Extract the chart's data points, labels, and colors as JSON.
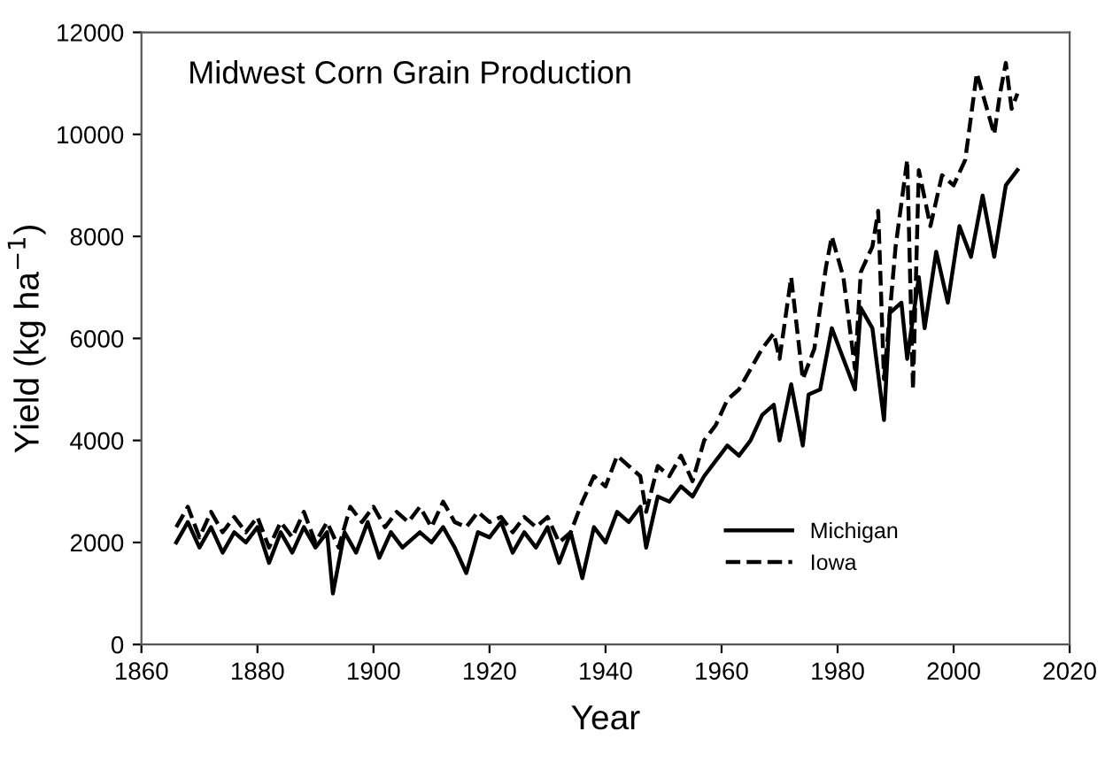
{
  "chart_data": {
    "type": "line",
    "title": "Midwest Corn Grain Production",
    "xlabel": "Year",
    "ylabel": "Yield (kg ha$^{−1}$)",
    "xlim": [
      1860,
      2020
    ],
    "xticks": [
      1860,
      1880,
      1900,
      1920,
      1940,
      1960,
      1980,
      2000,
      2020
    ],
    "ylim": [
      0,
      12000
    ],
    "yticks": [
      0,
      2000,
      4000,
      6000,
      8000,
      10000,
      12000
    ],
    "grid": false,
    "legend": "bottom right",
    "marker": "none",
    "series": [
      {
        "name": "Michigan",
        "color": "#000000",
        "line_style": "solid",
        "x": [
          1866,
          1868,
          1870,
          1872,
          1874,
          1876,
          1878,
          1880,
          1882,
          1884,
          1886,
          1888,
          1890,
          1892,
          1893,
          1895,
          1897,
          1899,
          1901,
          1903,
          1905,
          1908,
          1910,
          1912,
          1914,
          1916,
          1918,
          1920,
          1922,
          1924,
          1926,
          1928,
          1930,
          1932,
          1934,
          1936,
          1938,
          1940,
          1942,
          1944,
          1946,
          1947,
          1949,
          1951,
          1953,
          1955,
          1957,
          1959,
          1961,
          1963,
          1965,
          1967,
          1969,
          1970,
          1972,
          1974,
          1975,
          1977,
          1979,
          1981,
          1983,
          1984,
          1986,
          1988,
          1989,
          1991,
          1992,
          1994,
          1995,
          1997,
          1999,
          2001,
          2003,
          2005,
          2007,
          2009,
          2011
        ],
        "values": [
          2000,
          2400,
          1900,
          2300,
          1800,
          2200,
          2000,
          2300,
          1600,
          2200,
          1800,
          2300,
          1900,
          2200,
          1000,
          2200,
          1800,
          2400,
          1700,
          2200,
          1900,
          2200,
          2000,
          2300,
          1900,
          1400,
          2200,
          2100,
          2400,
          1800,
          2200,
          1900,
          2300,
          1600,
          2200,
          1300,
          2300,
          2000,
          2600,
          2400,
          2700,
          1900,
          2900,
          2800,
          3100,
          2900,
          3300,
          3600,
          3900,
          3700,
          4000,
          4500,
          4700,
          4000,
          5100,
          3900,
          4900,
          5000,
          6200,
          5600,
          5000,
          6600,
          6200,
          4400,
          6500,
          6700,
          5600,
          7200,
          6200,
          7700,
          6700,
          8200,
          7600,
          8800,
          7600,
          9000,
          9300
        ]
      },
      {
        "name": "Iowa",
        "color": "#000000",
        "line_style": "dashed",
        "x": [
          1866,
          1868,
          1870,
          1872,
          1874,
          1876,
          1878,
          1880,
          1882,
          1884,
          1886,
          1888,
          1890,
          1892,
          1894,
          1896,
          1898,
          1900,
          1902,
          1904,
          1906,
          1908,
          1910,
          1912,
          1914,
          1916,
          1918,
          1920,
          1922,
          1924,
          1926,
          1928,
          1930,
          1932,
          1934,
          1936,
          1938,
          1940,
          1942,
          1944,
          1946,
          1947,
          1949,
          1951,
          1953,
          1955,
          1957,
          1959,
          1961,
          1963,
          1965,
          1967,
          1969,
          1970,
          1972,
          1974,
          1976,
          1978,
          1979,
          1981,
          1983,
          1984,
          1986,
          1987,
          1988,
          1990,
          1992,
          1993,
          1994,
          1996,
          1998,
          2000,
          2002,
          2004,
          2005,
          2007,
          2008,
          2009,
          2010,
          2011
        ],
        "values": [
          2300,
          2700,
          2100,
          2600,
          2200,
          2500,
          2200,
          2500,
          1900,
          2400,
          2100,
          2600,
          2000,
          2400,
          1900,
          2700,
          2400,
          2700,
          2300,
          2600,
          2400,
          2700,
          2300,
          2800,
          2400,
          2300,
          2600,
          2400,
          2500,
          2200,
          2500,
          2300,
          2500,
          2000,
          2200,
          2800,
          3300,
          3100,
          3700,
          3500,
          3300,
          2600,
          3500,
          3300,
          3700,
          3200,
          4000,
          4300,
          4800,
          5000,
          5400,
          5800,
          6100,
          5600,
          7200,
          5200,
          5800,
          7400,
          8000,
          7200,
          5400,
          7300,
          7800,
          8500,
          5200,
          7800,
          9500,
          5000,
          9300,
          8200,
          9200,
          9000,
          9500,
          11200,
          10800,
          10000,
          10800,
          11400,
          10500,
          10800
        ]
      }
    ]
  }
}
